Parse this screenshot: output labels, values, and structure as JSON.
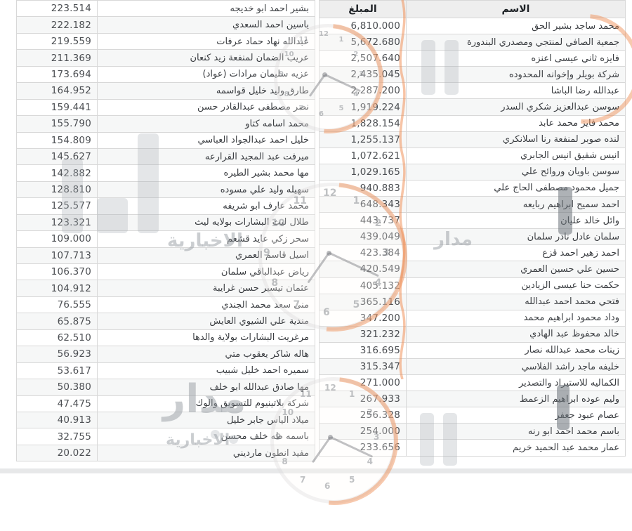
{
  "colors": {
    "watermark_orange": "#ef8a4e",
    "watermark_gray": "#aab0b6",
    "table_border": "#d8d8d8",
    "header_bg": "#eeeeee",
    "alt_row_bg": "#f6f7f7"
  },
  "watermark": {
    "word_madar": "مدار",
    "word_akhbaria": "الاخبارية",
    "clock_numerals": [
      "12",
      "1",
      "2",
      "3",
      "4",
      "5",
      "6",
      "7",
      "8",
      "9",
      "10",
      "11"
    ]
  },
  "right_table": {
    "headers": {
      "name": "الاسم",
      "amount": "المبلغ"
    },
    "rows": [
      {
        "name": "محمد ساجد بشير الحق",
        "amount": "6,810.000"
      },
      {
        "name": "جمعية الصافي لمنتجي ومصدري البندورة",
        "amount": "5,672.680"
      },
      {
        "name": "فايزه ثاني عيسى اعنزه",
        "amount": "2,507.640"
      },
      {
        "name": "شركة بويلر وإخوانه المحدوده",
        "amount": "2,435.045"
      },
      {
        "name": "عبدالله رضا الباشا",
        "amount": "2,287.200"
      },
      {
        "name": "سوسن عبدالعزيز شكري السدر",
        "amount": "1,919.224"
      },
      {
        "name": "محمد فايز محمد عابد",
        "amount": "1,828.154"
      },
      {
        "name": "لنده صوبر لمنفعة رنا اسلانكري",
        "amount": "1,255.137"
      },
      {
        "name": "انيس شفيق انيس الجابري",
        "amount": "1,072.621"
      },
      {
        "name": "سوسن باويان وروائح علي",
        "amount": "1,029.165"
      },
      {
        "name": "جميل محمود مصطفى الحاج علي",
        "amount": "940.883"
      },
      {
        "name": "احمد سميح ابراهيم ربايعه",
        "amount": "648.343"
      },
      {
        "name": "وائل خالد عليان",
        "amount": "443.737"
      },
      {
        "name": "سلمان عادل نادر سلمان",
        "amount": "439.049"
      },
      {
        "name": "احمد زهير احمد قزع",
        "amount": "423.384"
      },
      {
        "name": "حسين علي حسين العمري",
        "amount": "420.549"
      },
      {
        "name": "حكمت حنا عيسى الزيادين",
        "amount": "405.132"
      },
      {
        "name": "فتحي محمد احمد عبدالله",
        "amount": "365.116"
      },
      {
        "name": "وداد محمود ابراهيم محمد",
        "amount": "347.200"
      },
      {
        "name": "خالد محفوظ عبد الهادي",
        "amount": "321.232"
      },
      {
        "name": "زينات محمد عبدالله نصار",
        "amount": "316.695"
      },
      {
        "name": "خليفه ماجد راشد الفلاسي",
        "amount": "315.347"
      },
      {
        "name": "الكماليه للاستيراد والتصدير",
        "amount": "271.000"
      },
      {
        "name": "وليم عوده ابراهيم الزعمط",
        "amount": "267.933"
      },
      {
        "name": "عصام عبود جعفر",
        "amount": "256.328"
      },
      {
        "name": "باسم محمد احمد ابو رنه",
        "amount": "254.000"
      },
      {
        "name": "عمار محمد عبد الحميد خريم",
        "amount": "233.656"
      }
    ]
  },
  "left_table": {
    "rows": [
      {
        "name": "بشير احمد ابو خديجه",
        "amount": "223.514"
      },
      {
        "name": "ياسين احمد السعدي",
        "amount": "222.182"
      },
      {
        "name": "عبدالله نهاد حماد عرفات",
        "amount": "219.559"
      },
      {
        "name": "عريب الضمان لمنفعة زيد كنعان",
        "amount": "211.369"
      },
      {
        "name": "عزيه سليمان مرادات (عواد)",
        "amount": "173.694"
      },
      {
        "name": "طارق وليد خليل قواسمه",
        "amount": "164.952"
      },
      {
        "name": "نصر مصطفى عبدالقادر حسن",
        "amount": "159.441"
      },
      {
        "name": "محمد اسامه كتاو",
        "amount": "155.790"
      },
      {
        "name": "خليل احمد عبدالجواد العباسي",
        "amount": "154.809"
      },
      {
        "name": "ميرفت عبد المجيد القرارعه",
        "amount": "145.627"
      },
      {
        "name": "مها محمد بشير الطيره",
        "amount": "142.882"
      },
      {
        "name": "سهيله وليد علي مسوده",
        "amount": "128.810"
      },
      {
        "name": "محمد عارف ابو شريفه",
        "amount": "125.577"
      },
      {
        "name": "طلال ليث البشارات بولايه ليث",
        "amount": "123.321"
      },
      {
        "name": "سحر زكي عايد قشعم",
        "amount": "109.000"
      },
      {
        "name": "اسيل قاسم العمري",
        "amount": "107.713"
      },
      {
        "name": "رياض عبدالباقي سلمان",
        "amount": "106.370"
      },
      {
        "name": "عثمان تيسير حسن غرايبة",
        "amount": "104.912"
      },
      {
        "name": "منى سعد محمد الجندي",
        "amount": "76.555"
      },
      {
        "name": "مندية علي الشيوي العايش",
        "amount": "65.875"
      },
      {
        "name": "مرغريت البشارات بولاية والدها",
        "amount": "62.510"
      },
      {
        "name": "هاله شاكر يعقوب متي",
        "amount": "56.923"
      },
      {
        "name": "سميره احمد خليل شبيب",
        "amount": "53.617"
      },
      {
        "name": "مها صادق عبدالله ابو خلف",
        "amount": "50.380"
      },
      {
        "name": "شركة بلاتينيوم للتسويق والوك",
        "amount": "47.475"
      },
      {
        "name": "ميلاد الياس جابر خليل",
        "amount": "40.913"
      },
      {
        "name": "باسمه طه خلف محسن",
        "amount": "32.755"
      },
      {
        "name": "مفيد انطون مارديني",
        "amount": "20.022"
      }
    ]
  }
}
